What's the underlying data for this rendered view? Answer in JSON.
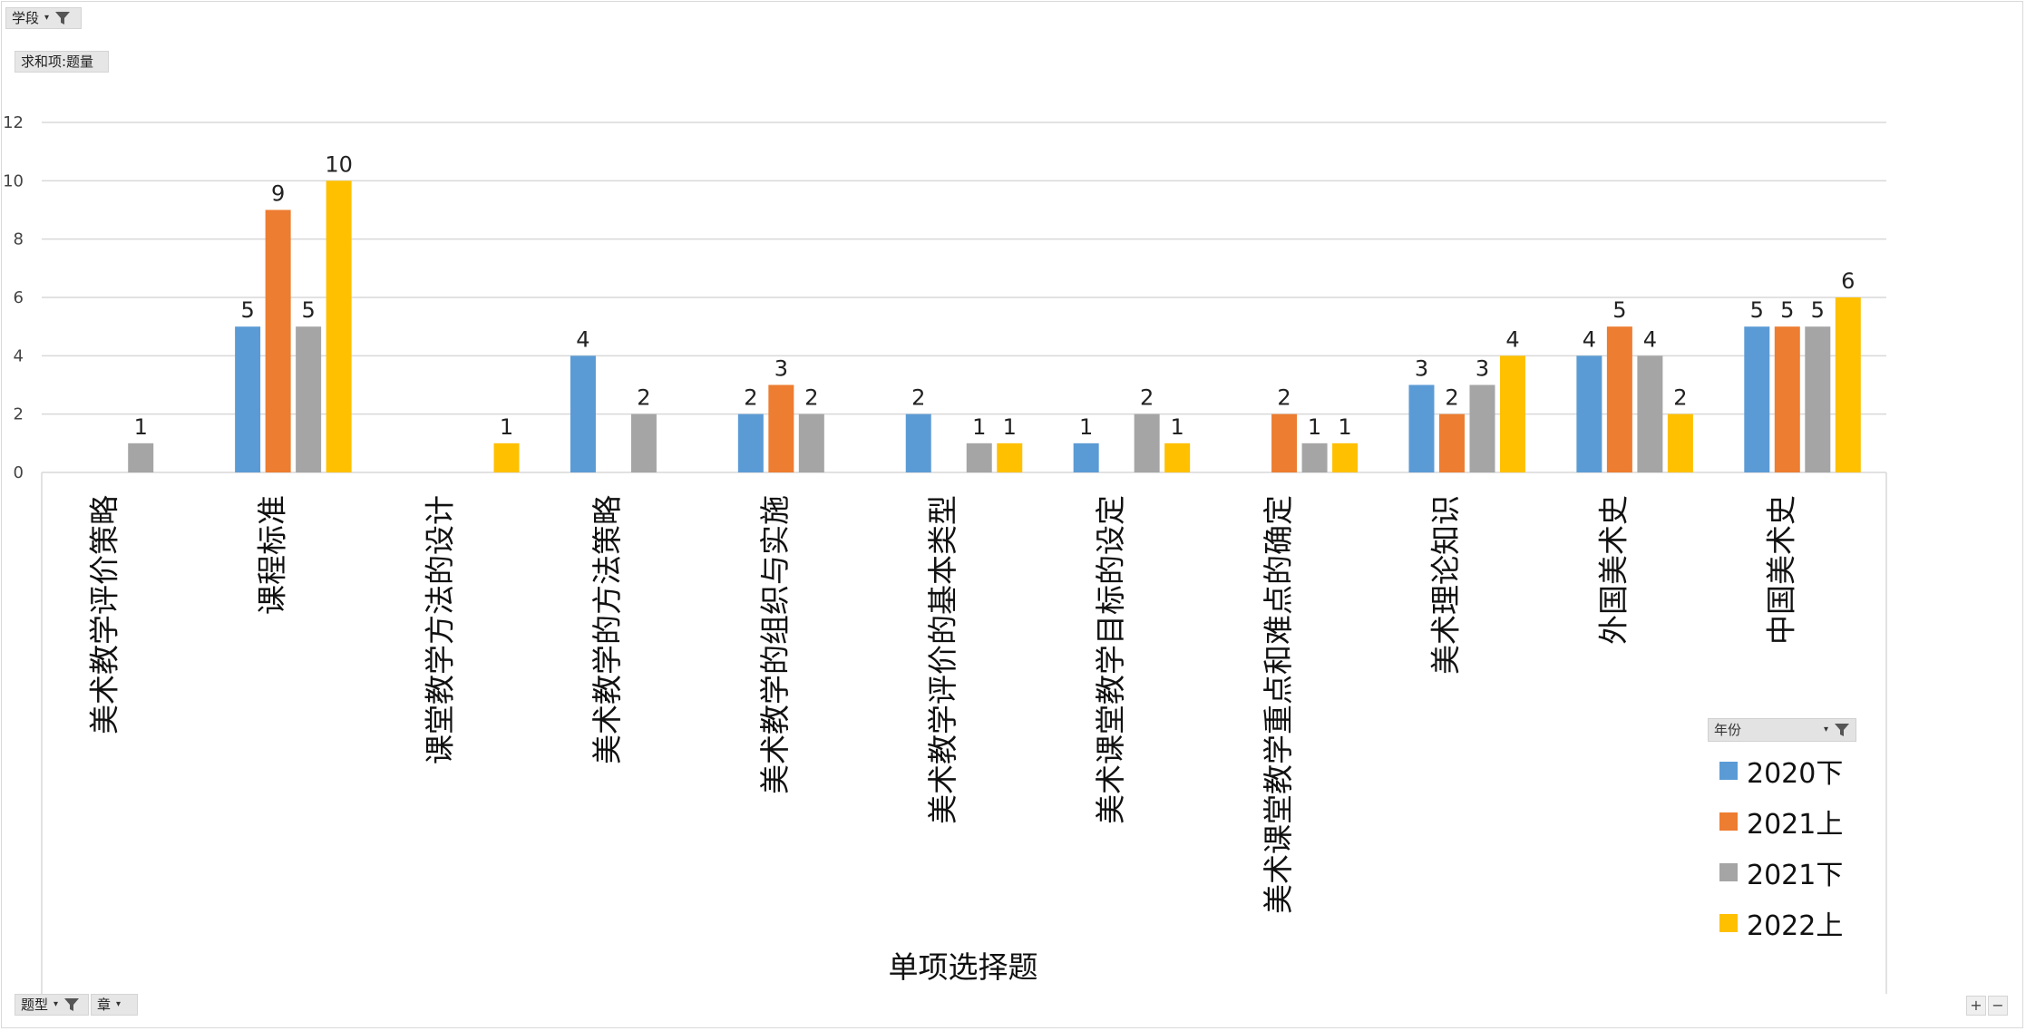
{
  "filters": {
    "top": "学段",
    "value_field": "求和项:题量",
    "bottom_left": [
      "题型",
      "章"
    ],
    "legend_field": "年份"
  },
  "controls": {
    "zoom_in": "+",
    "zoom_out": "−"
  },
  "colors": {
    "2020下": "#5b9bd5",
    "2021上": "#ed7d31",
    "2021下": "#a5a5a5",
    "2022上": "#ffc000"
  },
  "chart_data": {
    "type": "bar",
    "title": "",
    "xlabel": "单项选择题",
    "ylabel": "",
    "ylim": [
      0,
      12
    ],
    "yticks": [
      0,
      2,
      4,
      6,
      8,
      10,
      12
    ],
    "grid": true,
    "legend_position": "right",
    "categories": [
      "美术教学评价策略",
      "课程标准",
      "课堂教学方法的设计",
      "美术教学的方法策略",
      "美术教学的组织与实施",
      "美术教学评价的基本类型",
      "美术课堂教学目标的设定",
      "美术课堂教学重点和难点的确定",
      "美术理论知识",
      "外国美术史",
      "中国美术史"
    ],
    "series": [
      {
        "name": "2020下",
        "color": "#5b9bd5",
        "values": [
          null,
          5,
          null,
          4,
          2,
          2,
          1,
          null,
          3,
          4,
          5
        ]
      },
      {
        "name": "2021上",
        "color": "#ed7d31",
        "values": [
          null,
          9,
          null,
          null,
          3,
          null,
          null,
          2,
          2,
          5,
          5
        ]
      },
      {
        "name": "2021下",
        "color": "#a5a5a5",
        "values": [
          1,
          5,
          null,
          2,
          2,
          1,
          2,
          1,
          3,
          4,
          5
        ]
      },
      {
        "name": "2022上",
        "color": "#ffc000",
        "values": [
          null,
          10,
          1,
          null,
          null,
          1,
          1,
          1,
          4,
          2,
          6
        ]
      }
    ]
  }
}
